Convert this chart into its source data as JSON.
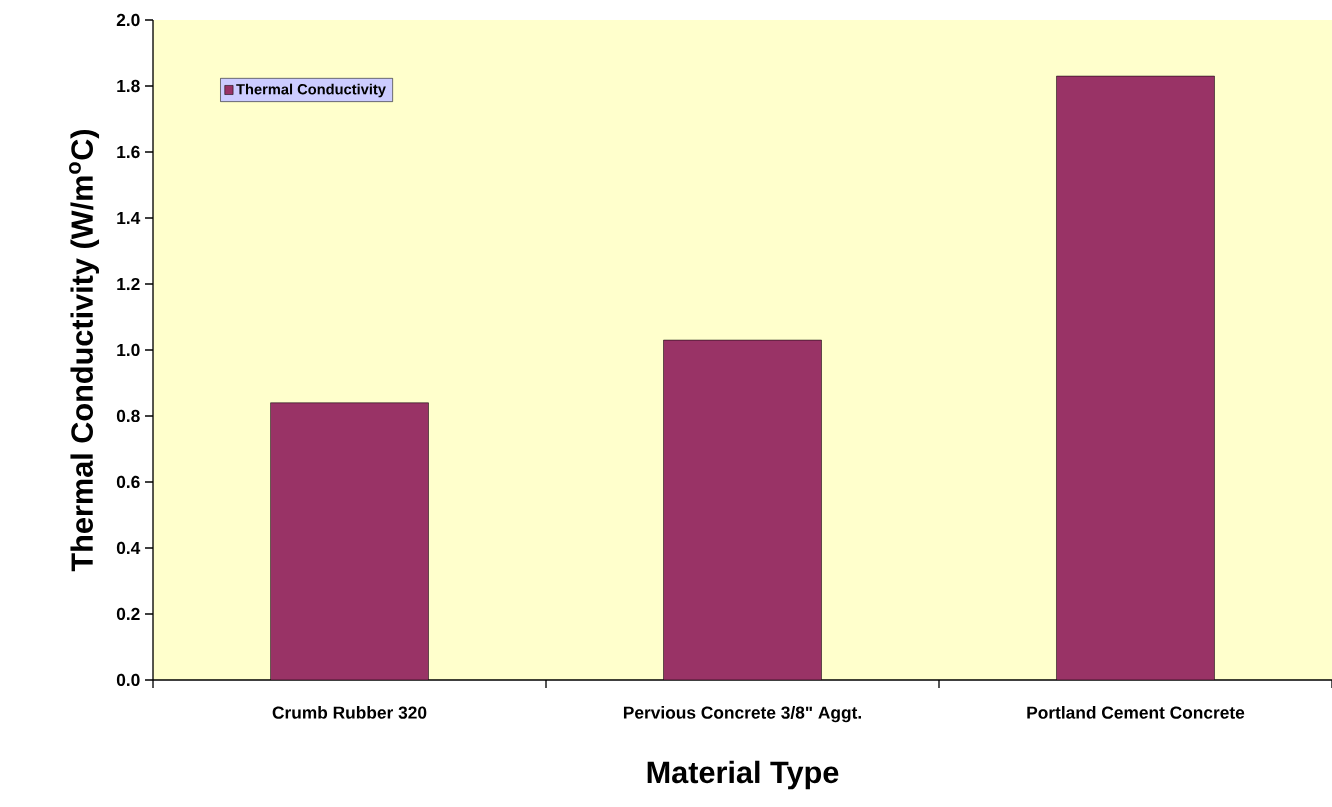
{
  "chart_data": {
    "type": "bar",
    "xlabel": "Material Type",
    "ylabel": "Thermal Conductivity (W/m$^{o}$C)",
    "categories": [
      "Crumb Rubber 320",
      "Pervious Concrete 3/8\" Aggt.",
      "Portland Cement Concrete"
    ],
    "series": [
      {
        "name": "Thermal Conductivity",
        "color": "#993366",
        "values": [
          0.84,
          1.03,
          1.83
        ]
      }
    ],
    "ylim": [
      0,
      2.0
    ],
    "yticks": [
      {
        "value": 0,
        "label": "0.0"
      },
      {
        "value": 0.2,
        "label": "0.2"
      },
      {
        "value": 0.4,
        "label": "0.4"
      },
      {
        "value": 0.6,
        "label": "0.6"
      },
      {
        "value": 0.8,
        "label": "0.8"
      },
      {
        "value": 1.0,
        "label": "1.0"
      },
      {
        "value": 1.2,
        "label": "1.2"
      },
      {
        "value": 1.4,
        "label": "1.4"
      },
      {
        "value": 1.6,
        "label": "1.6"
      },
      {
        "value": 1.8,
        "label": "1.8"
      },
      {
        "value": 2.0,
        "label": "2.0"
      }
    ],
    "grid": false,
    "legend": "top left"
  }
}
